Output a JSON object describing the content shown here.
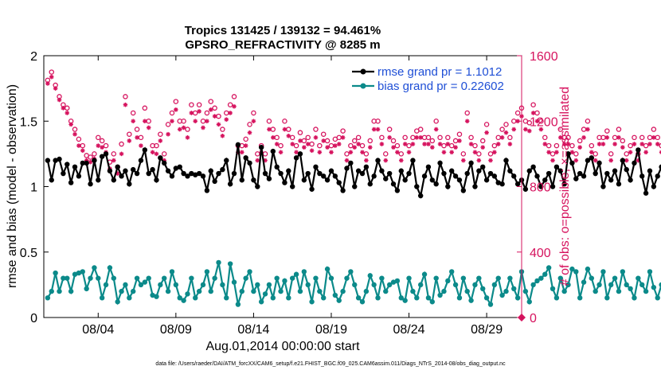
{
  "colors": {
    "rmse": "#000000",
    "bias": "#0b8a8a",
    "obs": "#d6135e",
    "legend_text": "#1f4fd6"
  },
  "chart_data": {
    "type": "line",
    "title": "Tropics 131425 / 139132 = 94.461%",
    "subtitle": "GPSRO_REFRACTIVITY @ 8285 m",
    "xlabel": "Aug.01,2014 00:00:00 start",
    "ylabel": "rmse and bias (model - observation)",
    "ylabel_right": "# of obs: o=possible; ×=assimilated",
    "footer": "data file: /Users/raeder/DAI/ATM_forcXX/CAM6_setup/f.e21.FHIST_BGC.f09_025.CAM6assim.011/Diags_NTrS_2014-08/obs_diag_output.nc",
    "xlim": [
      0.5,
      31.25
    ],
    "ylim": [
      0,
      2
    ],
    "ylim_right": [
      0,
      1600
    ],
    "x_ticks": [
      {
        "v": 4,
        "label": "08/04"
      },
      {
        "v": 9,
        "label": "08/09"
      },
      {
        "v": 14,
        "label": "08/14"
      },
      {
        "v": 19,
        "label": "08/19"
      },
      {
        "v": 24,
        "label": "08/24"
      },
      {
        "v": 29,
        "label": "08/29"
      }
    ],
    "y_ticks": [
      {
        "v": 0,
        "label": "0"
      },
      {
        "v": 0.5,
        "label": "0.5"
      },
      {
        "v": 1,
        "label": "1"
      },
      {
        "v": 1.5,
        "label": "1.5"
      },
      {
        "v": 2,
        "label": "2"
      }
    ],
    "y_ticks_right": [
      {
        "v": 0,
        "label": "0"
      },
      {
        "v": 400,
        "label": "400"
      },
      {
        "v": 800,
        "label": "800"
      },
      {
        "v": 1200,
        "label": "1200"
      },
      {
        "v": 1600,
        "label": "1600"
      }
    ],
    "x_start": 0.75,
    "x_step": 0.25,
    "series": [
      {
        "name": "rmse grand pr = 1.1012",
        "axis": "left",
        "marker": "dot",
        "values": [
          1.2,
          1.05,
          1.2,
          1.21,
          1.1,
          1.17,
          1.03,
          1.15,
          1.08,
          1.18,
          1.18,
          1.02,
          1.2,
          1.05,
          1.23,
          1.25,
          1.12,
          1.05,
          1.15,
          1.08,
          1.12,
          1.02,
          1.13,
          1.1,
          1.2,
          1.28,
          1.1,
          1.13,
          1.05,
          1.22,
          1.18,
          1.12,
          1.08,
          1.14,
          1.15,
          1.1,
          1.08,
          1.1,
          1.09,
          1.1,
          1.08,
          0.97,
          1.12,
          1.04,
          1.1,
          1.13,
          1.2,
          1.02,
          1.1,
          1.32,
          1.05,
          1.22,
          1.18,
          1.05,
          1.0,
          1.3,
          1.1,
          1.06,
          1.27,
          1.15,
          1.1,
          1.03,
          1.12,
          1.0,
          1.22,
          1.25,
          1.05,
          1.1,
          0.98,
          1.15,
          1.1,
          1.08,
          1.05,
          1.12,
          1.08,
          1.03,
          0.97,
          1.14,
          1.18,
          1.0,
          1.12,
          1.1,
          1.15,
          1.02,
          1.08,
          1.2,
          1.12,
          1.06,
          1.1,
          1.02,
          0.97,
          1.12,
          1.05,
          1.1,
          1.2,
          1.0,
          0.93,
          1.08,
          1.15,
          1.05,
          1.02,
          1.18,
          1.1,
          1.0,
          1.12,
          1.08,
          1.05,
          0.97,
          1.1,
          1.18,
          1.0,
          1.12,
          1.15,
          1.05,
          1.1,
          1.08,
          1.03,
          1.02,
          1.2,
          1.12,
          1.08,
          1.02,
          1.05,
          0.98,
          1.12,
          1.15,
          1.08,
          1.0,
          1.05,
          1.1,
          1.0,
          1.15,
          1.12,
          1.02,
          1.25,
          1.18,
          1.06,
          1.1,
          1.08,
          1.2,
          1.22,
          1.1,
          1.18,
          1.0,
          1.1,
          1.05,
          1.12,
          1.02,
          1.2,
          1.13,
          1.05,
          1.18,
          1.28,
          1.08,
          0.95,
          1.12,
          1.0,
          1.08,
          1.15,
          1.02,
          1.12,
          1.05,
          1.1,
          1.12,
          1.1,
          1.15,
          1.2,
          1.05,
          1.13,
          1.2,
          1.08,
          1.25,
          1.0,
          1.05,
          1.15,
          1.18,
          1.05,
          1.1,
          0.95,
          1.15,
          0.96,
          1.02,
          1.04,
          1.03
        ]
      },
      {
        "name": "bias grand pr = 0.22602",
        "axis": "left",
        "marker": "dot",
        "values": [
          0.15,
          0.2,
          0.34,
          0.2,
          0.3,
          0.3,
          0.2,
          0.33,
          0.34,
          0.35,
          0.22,
          0.3,
          0.38,
          0.3,
          0.15,
          0.25,
          0.38,
          0.3,
          0.12,
          0.2,
          0.25,
          0.15,
          0.2,
          0.3,
          0.25,
          0.27,
          0.3,
          0.17,
          0.16,
          0.25,
          0.3,
          0.2,
          0.35,
          0.25,
          0.15,
          0.13,
          0.18,
          0.3,
          0.15,
          0.2,
          0.25,
          0.35,
          0.2,
          0.3,
          0.42,
          0.25,
          0.15,
          0.41,
          0.27,
          0.1,
          0.2,
          0.3,
          0.35,
          0.2,
          0.25,
          0.12,
          0.18,
          0.25,
          0.15,
          0.3,
          0.2,
          0.28,
          0.15,
          0.3,
          0.33,
          0.2,
          0.35,
          0.25,
          0.12,
          0.3,
          0.2,
          0.15,
          0.37,
          0.3,
          0.17,
          0.13,
          0.2,
          0.3,
          0.35,
          0.25,
          0.15,
          0.12,
          0.2,
          0.32,
          0.25,
          0.15,
          0.3,
          0.2,
          0.25,
          0.27,
          0.28,
          0.15,
          0.13,
          0.3,
          0.2,
          0.15,
          0.25,
          0.33,
          0.15,
          0.12,
          0.3,
          0.17,
          0.2,
          0.28,
          0.35,
          0.25,
          0.15,
          0.3,
          0.2,
          0.13,
          0.25,
          0.3,
          0.22,
          0.15,
          0.1,
          0.25,
          0.3,
          0.17,
          0.2,
          0.3,
          0.22,
          0.15,
          0.35,
          0.2,
          0.12,
          0.25,
          0.28,
          0.3,
          0.33,
          0.38,
          0.22,
          0.15,
          0.3,
          0.2,
          0.25,
          0.37,
          0.35,
          0.15,
          0.27,
          0.37,
          0.3,
          0.2,
          0.25,
          0.35,
          0.15,
          0.25,
          0.3,
          0.2,
          0.35,
          0.25,
          0.22,
          0.15,
          0.3,
          0.25,
          0.2,
          0.35,
          0.23,
          0.15,
          0.25,
          0.3,
          0.2,
          0.28,
          0.25,
          0.15,
          0.2,
          0.25,
          0.35,
          0.3,
          0.15,
          0.22,
          0.25,
          0.2,
          0.35,
          0.12,
          0.15,
          0.25,
          0.3,
          0.15,
          0.28,
          0.25,
          0.35,
          0.22,
          0.3,
          0.2,
          0.15,
          0.25,
          0.05
        ]
      },
      {
        "name": "possible obs",
        "axis": "right",
        "marker": "circle",
        "values": [
          1450,
          1500,
          1420,
          1350,
          1300,
          1280,
          1200,
          1150,
          1090,
          1050,
          990,
          980,
          1000,
          1100,
          1080,
          1050,
          950,
          1000,
          920,
          1060,
          1350,
          1120,
          1250,
          1150,
          1100,
          1280,
          1200,
          1050,
          1050,
          1120,
          1000,
          1180,
          1250,
          1320,
          1200,
          1200,
          1150,
          1300,
          1250,
          1300,
          1200,
          1250,
          1320,
          1280,
          1230,
          1150,
          1250,
          1300,
          1350,
          1050,
          1050,
          1090,
          1180,
          1250,
          1000,
          1050,
          1000,
          1200,
          1150,
          1100,
          1050,
          1200,
          1150,
          1100,
          1050,
          1130,
          1080,
          1100,
          1060,
          1150,
          1050,
          1120,
          1080,
          1050,
          1090,
          1100,
          1140,
          1000,
          1050,
          1080,
          1100,
          1050,
          1000,
          1080,
          1200,
          1200,
          1100,
          1000,
          1150,
          1080,
          1050,
          1000,
          1100,
          1050,
          1100,
          1140,
          1150,
          1100,
          1100,
          1080,
          1200,
          1100,
          1050,
          1100,
          1050,
          1080,
          1120,
          1000,
          1250,
          1100,
          1050,
          1000,
          1080,
          1180,
          1000,
          1050,
          1100,
          1150,
          1180,
          1100,
          1200,
          1250,
          1280,
          1200,
          1190,
          1300,
          1250,
          1200,
          1100,
          1050,
          1000,
          1050,
          1150,
          1100,
          1100,
          1050,
          1000,
          1080,
          1150,
          1200,
          1050,
          1000,
          1100,
          1100,
          1140,
          1000,
          1100,
          1150,
          1080,
          1000,
          1050,
          1100,
          1000,
          1100,
          1050,
          1100,
          1150,
          1100,
          1050,
          1000,
          1100,
          1050,
          1140,
          1050,
          1100,
          1080,
          1050,
          1000,
          1100,
          1080,
          1050,
          1130,
          1000,
          1050,
          1100,
          1150,
          1080,
          1100,
          1180,
          1100,
          1050,
          1000,
          1100,
          1200,
          1000,
          950,
          800,
          1000,
          1150,
          1100,
          1250,
          1200,
          1050,
          1100,
          1150
        ]
      },
      {
        "name": "assimilated obs",
        "axis": "right",
        "marker": "x",
        "values": [
          1430,
          1470,
          1400,
          1330,
          1280,
          1250,
          1180,
          1120,
          1050,
          1020,
          960,
          950,
          970,
          1050,
          1040,
          1010,
          910,
          960,
          880,
          1000,
          1300,
          1080,
          1200,
          1100,
          1050,
          1200,
          1160,
          1010,
          1000,
          1080,
          960,
          1120,
          1200,
          1270,
          1150,
          1160,
          1100,
          1250,
          1200,
          1260,
          1160,
          1200,
          1270,
          1230,
          1180,
          1110,
          1210,
          1250,
          1290,
          1010,
          1010,
          1050,
          1130,
          1200,
          960,
          1010,
          960,
          1150,
          1100,
          1060,
          1010,
          1150,
          1110,
          1060,
          1010,
          1080,
          1040,
          1060,
          1020,
          1100,
          1010,
          1080,
          1040,
          1010,
          1050,
          1060,
          1100,
          960,
          1010,
          1040,
          1060,
          1010,
          960,
          1040,
          1150,
          1150,
          1060,
          960,
          1100,
          1040,
          1010,
          960,
          1060,
          1010,
          1060,
          1100,
          1100,
          1060,
          1060,
          1040,
          1150,
          1060,
          1010,
          1060,
          1010,
          1040,
          1080,
          960,
          1200,
          1060,
          1010,
          960,
          1040,
          1130,
          960,
          1010,
          1060,
          1100,
          1130,
          1060,
          1150,
          1200,
          1230,
          1150,
          1140,
          1250,
          1200,
          1150,
          1060,
          1010,
          960,
          1010,
          1100,
          1060,
          1060,
          1010,
          960,
          1040,
          1100,
          1150,
          1010,
          960,
          1060,
          1060,
          1100,
          960,
          1060,
          1100,
          1040,
          960,
          1010,
          1060,
          960,
          1060,
          1010,
          1060,
          1100,
          1060,
          1010,
          960,
          1060,
          1010,
          1100,
          1010,
          1060,
          1040,
          1010,
          960,
          1060,
          1040,
          1010,
          1080,
          960,
          1010,
          1060,
          1100,
          1040,
          1060,
          1130,
          1060,
          1010,
          960,
          1060,
          1150,
          960,
          900,
          700,
          960,
          1100,
          1060,
          1200,
          1150,
          1010,
          1060,
          1100
        ]
      }
    ]
  }
}
